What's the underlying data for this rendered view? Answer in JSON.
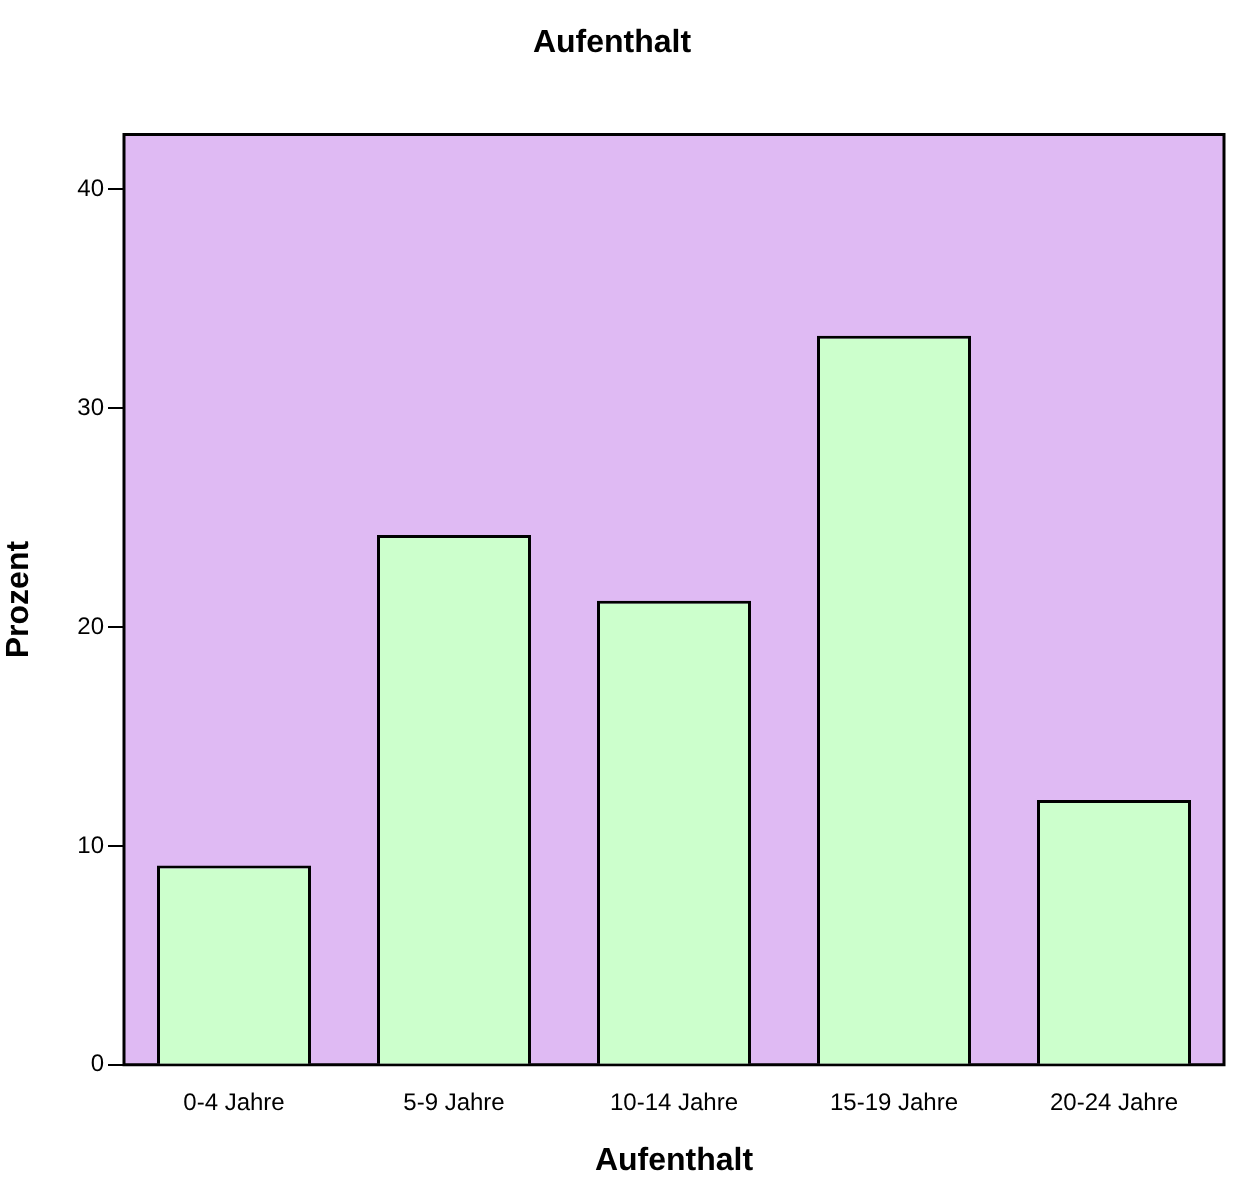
{
  "chart_data": {
    "type": "bar",
    "title": "Aufenthalt",
    "xlabel": "Aufenthalt",
    "ylabel": "Prozent",
    "categories": [
      "0-4 Jahre",
      "5-9 Jahre",
      "10-14 Jahre",
      "15-19 Jahre",
      "20-24 Jahre"
    ],
    "values": [
      9.1,
      24.2,
      21.2,
      33.3,
      12.1
    ],
    "color": "#ccffcc",
    "ylim": [
      0,
      42.5
    ],
    "yticks": [
      0,
      10,
      20,
      30,
      40
    ],
    "grid": false,
    "legend": false
  }
}
